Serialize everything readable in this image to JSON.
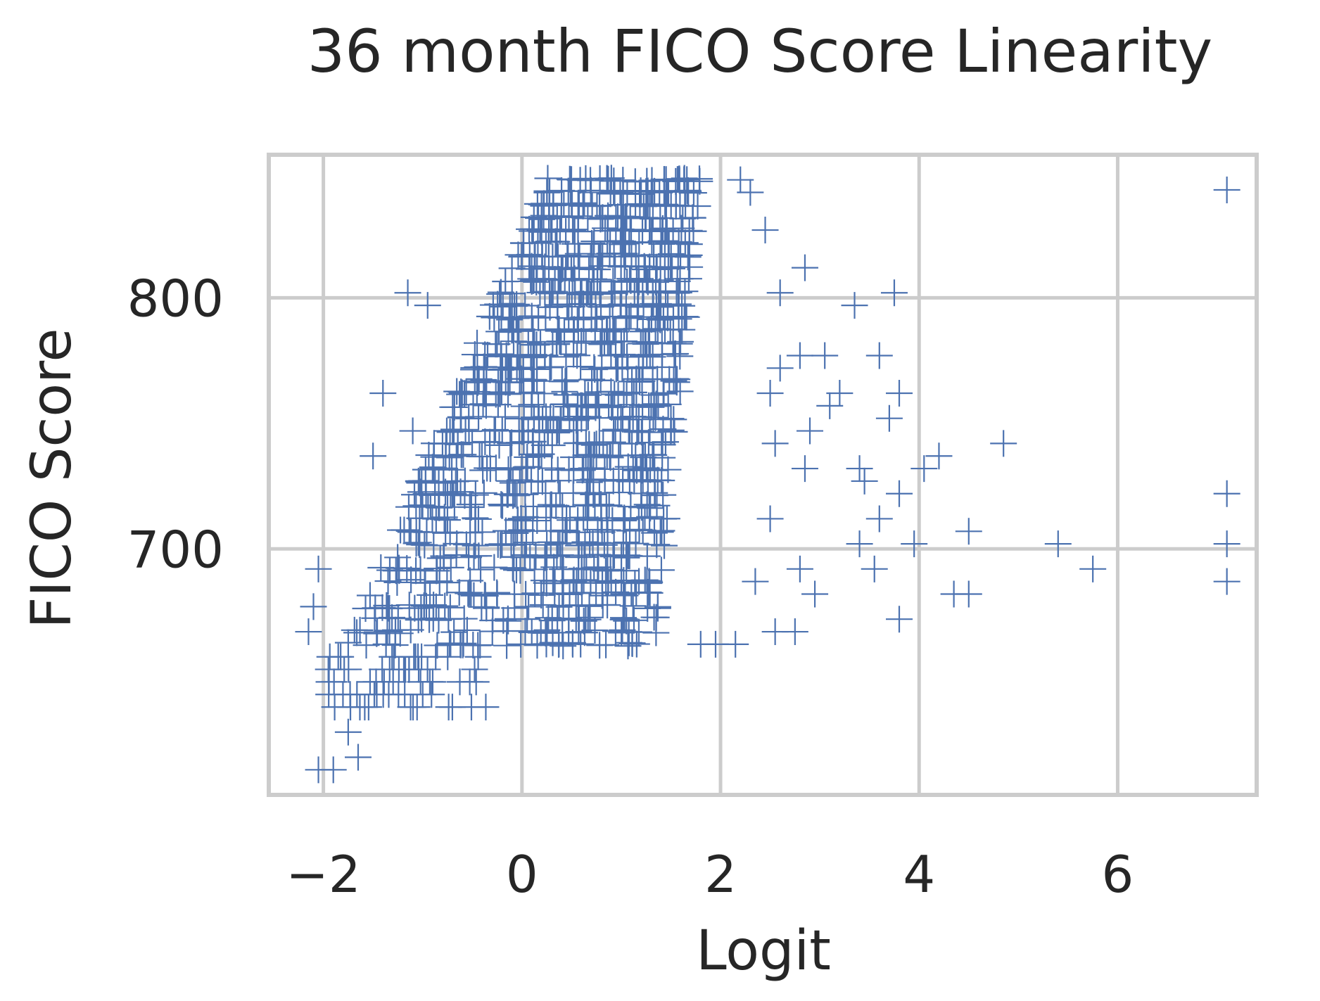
{
  "chart_data": {
    "type": "scatter",
    "title": "36 month FICO Score Linearity",
    "xlabel": "Logit",
    "ylabel": "FICO Score",
    "xlim": [
      -2.55,
      7.4
    ],
    "ylim": [
      602,
      857
    ],
    "x_ticks": [
      -2,
      0,
      2,
      4,
      6
    ],
    "x_tick_labels": [
      "−2",
      "0",
      "2",
      "4",
      "6"
    ],
    "y_ticks": [
      700,
      800
    ],
    "y_tick_labels": [
      "700",
      "800"
    ],
    "grid": true,
    "legend": "none",
    "marker": "+",
    "series_color": "#4c72b0",
    "dense_cloud": {
      "fico_grid": [
        662,
        667,
        672,
        677,
        682,
        687,
        692,
        697,
        702,
        707,
        712,
        717,
        722,
        727,
        732,
        737,
        742,
        747,
        752,
        757,
        762,
        767,
        772,
        777,
        782,
        787,
        792,
        797,
        802,
        807,
        812,
        817,
        822,
        827,
        832,
        837,
        842,
        847
      ],
      "note_points_per_level": 32
    },
    "outliers": [
      {
        "x": 7.1,
        "y": 843
      },
      {
        "x": 7.1,
        "y": 722
      },
      {
        "x": 7.1,
        "y": 702
      },
      {
        "x": 7.1,
        "y": 687
      },
      {
        "x": 5.75,
        "y": 692
      },
      {
        "x": 5.4,
        "y": 702
      },
      {
        "x": 4.85,
        "y": 742
      },
      {
        "x": 4.5,
        "y": 707
      },
      {
        "x": 4.5,
        "y": 682
      },
      {
        "x": 4.35,
        "y": 682
      },
      {
        "x": 4.2,
        "y": 737
      },
      {
        "x": 4.05,
        "y": 732
      },
      {
        "x": 3.95,
        "y": 702
      },
      {
        "x": 3.8,
        "y": 672
      },
      {
        "x": 3.75,
        "y": 802
      },
      {
        "x": 3.8,
        "y": 722
      },
      {
        "x": 3.8,
        "y": 762
      },
      {
        "x": 3.7,
        "y": 752
      },
      {
        "x": 3.6,
        "y": 777
      },
      {
        "x": 3.6,
        "y": 712
      },
      {
        "x": 3.55,
        "y": 692
      },
      {
        "x": 3.45,
        "y": 727
      },
      {
        "x": 3.4,
        "y": 732
      },
      {
        "x": 3.35,
        "y": 797
      },
      {
        "x": 3.4,
        "y": 702
      },
      {
        "x": 3.2,
        "y": 762
      },
      {
        "x": 3.1,
        "y": 757
      },
      {
        "x": 3.05,
        "y": 777
      },
      {
        "x": 2.95,
        "y": 682
      },
      {
        "x": 2.9,
        "y": 747
      },
      {
        "x": 2.85,
        "y": 812
      },
      {
        "x": 2.85,
        "y": 732
      },
      {
        "x": 2.8,
        "y": 777
      },
      {
        "x": 2.8,
        "y": 692
      },
      {
        "x": 2.75,
        "y": 667
      },
      {
        "x": 2.55,
        "y": 667
      },
      {
        "x": 2.6,
        "y": 802
      },
      {
        "x": 2.6,
        "y": 772
      },
      {
        "x": 2.55,
        "y": 742
      },
      {
        "x": 2.5,
        "y": 762
      },
      {
        "x": 2.45,
        "y": 827
      },
      {
        "x": 2.5,
        "y": 712
      },
      {
        "x": 2.35,
        "y": 687
      },
      {
        "x": 2.3,
        "y": 842
      },
      {
        "x": 2.2,
        "y": 847
      },
      {
        "x": 2.15,
        "y": 662
      },
      {
        "x": 1.95,
        "y": 662
      },
      {
        "x": 1.8,
        "y": 662
      },
      {
        "x": -1.15,
        "y": 802
      },
      {
        "x": -0.95,
        "y": 797
      },
      {
        "x": -1.4,
        "y": 762
      },
      {
        "x": -1.1,
        "y": 747
      },
      {
        "x": -1.5,
        "y": 737
      },
      {
        "x": -2.05,
        "y": 692
      },
      {
        "x": -2.1,
        "y": 677
      },
      {
        "x": -2.15,
        "y": 667
      },
      {
        "x": -1.95,
        "y": 652
      },
      {
        "x": -1.75,
        "y": 627
      },
      {
        "x": -1.65,
        "y": 617
      },
      {
        "x": -2.05,
        "y": 612
      },
      {
        "x": -1.9,
        "y": 612
      },
      {
        "x": 0.0,
        "y": 817
      },
      {
        "x": 0.5,
        "y": 837
      }
    ]
  }
}
